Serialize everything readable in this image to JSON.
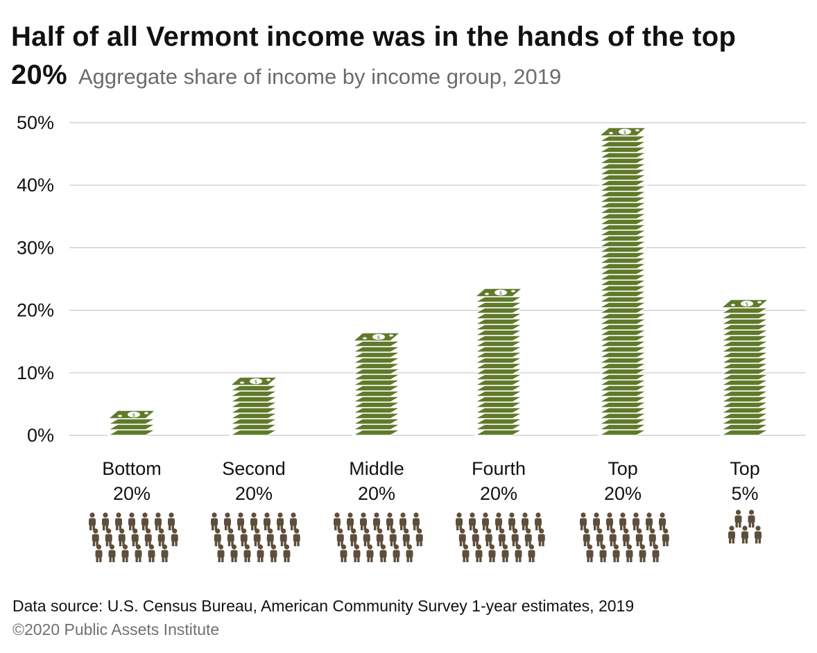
{
  "chart_data": {
    "type": "bar",
    "title": "Half of all Vermont income was in the hands of the top 20%",
    "subtitle": "Aggregate share of income by income group, 2019",
    "categories": [
      [
        "Bottom",
        "20%"
      ],
      [
        "Second",
        "20%"
      ],
      [
        "Middle",
        "20%"
      ],
      [
        "Fourth",
        "20%"
      ],
      [
        "Top",
        "20%"
      ],
      [
        "Top",
        "5%"
      ]
    ],
    "values": [
      2.6,
      8.3,
      14.7,
      22.3,
      47.8,
      20.0
    ],
    "ylim": [
      0,
      50
    ],
    "yticks": [
      "0%",
      "10%",
      "20%",
      "30%",
      "40%",
      "50%"
    ],
    "xlabel": "",
    "ylabel": "",
    "people_counts": [
      20,
      20,
      20,
      20,
      20,
      5
    ],
    "grid": true,
    "colors": {
      "bill": "#5f7a2a",
      "bill_dark": "#4c6320",
      "bill_edge": "#ffffff",
      "person": "#5e4e3c",
      "grid": "#c8c8c8"
    }
  },
  "footer": {
    "source": "Data source: U.S. Census Bureau, American Community Survey 1-year estimates, 2019",
    "copyright": "©2020 Public Assets Institute"
  }
}
